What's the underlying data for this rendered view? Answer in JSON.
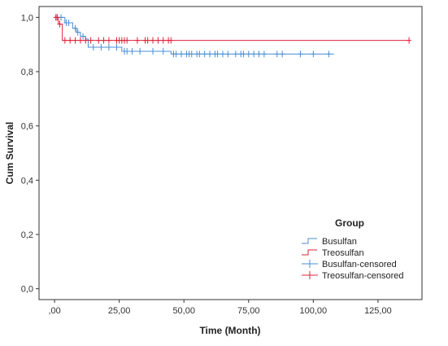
{
  "chart_data": {
    "type": "line",
    "subtype": "kaplan-meier",
    "title": "",
    "xlabel": "Time (Month)",
    "ylabel": "Cum Survival",
    "xlim": [
      -6,
      142
    ],
    "ylim": [
      -0.04,
      1.04
    ],
    "xticks": [
      0,
      25,
      50,
      75,
      100,
      125
    ],
    "xtick_labels": [
      ",00",
      "25,00",
      "50,00",
      "75,00",
      "100,00",
      "125,00"
    ],
    "yticks": [
      0,
      0.2,
      0.4,
      0.6,
      0.8,
      1.0
    ],
    "ytick_labels": [
      "0,0",
      "0,2",
      "0,4",
      "0,6",
      "0,8",
      "1,0"
    ],
    "grid": false,
    "legend": {
      "title": "Group",
      "position": "bottom-right",
      "entries": [
        "Busulfan",
        "Treosulfan",
        "Busulfan-censored",
        "Treosulfan-censored"
      ]
    },
    "colors": {
      "busulfan": "#4a8fd4",
      "treosulfan": "#e0223a"
    },
    "series": [
      {
        "name": "Busulfan",
        "color": "#4a8fd4",
        "steps": [
          [
            0,
            1.0
          ],
          [
            4,
            0.98
          ],
          [
            7,
            0.96
          ],
          [
            8.5,
            0.945
          ],
          [
            10,
            0.93
          ],
          [
            12,
            0.92
          ],
          [
            13,
            0.89
          ],
          [
            26,
            0.875
          ],
          [
            45,
            0.865
          ],
          [
            108,
            0.865
          ]
        ],
        "censored": [
          [
            1,
            1.0
          ],
          [
            2.5,
            1.0
          ],
          [
            4.5,
            0.98
          ],
          [
            5.5,
            0.98
          ],
          [
            8,
            0.96
          ],
          [
            9,
            0.945
          ],
          [
            11,
            0.93
          ],
          [
            15,
            0.89
          ],
          [
            18,
            0.89
          ],
          [
            21,
            0.89
          ],
          [
            24,
            0.89
          ],
          [
            27,
            0.875
          ],
          [
            28,
            0.875
          ],
          [
            30,
            0.875
          ],
          [
            33,
            0.875
          ],
          [
            38,
            0.875
          ],
          [
            42,
            0.875
          ],
          [
            46,
            0.865
          ],
          [
            47,
            0.865
          ],
          [
            49,
            0.865
          ],
          [
            51,
            0.865
          ],
          [
            52,
            0.865
          ],
          [
            53,
            0.865
          ],
          [
            55,
            0.865
          ],
          [
            56,
            0.865
          ],
          [
            58,
            0.865
          ],
          [
            60,
            0.865
          ],
          [
            62,
            0.865
          ],
          [
            63,
            0.865
          ],
          [
            65,
            0.865
          ],
          [
            67,
            0.865
          ],
          [
            70,
            0.865
          ],
          [
            72,
            0.865
          ],
          [
            73,
            0.865
          ],
          [
            75,
            0.865
          ],
          [
            77,
            0.865
          ],
          [
            79,
            0.865
          ],
          [
            81,
            0.865
          ],
          [
            86,
            0.865
          ],
          [
            88,
            0.865
          ],
          [
            95,
            0.865
          ],
          [
            100,
            0.865
          ],
          [
            106,
            0.865
          ]
        ]
      },
      {
        "name": "Treosulfan",
        "color": "#e0223a",
        "steps": [
          [
            0,
            1.0
          ],
          [
            1.5,
            0.975
          ],
          [
            3,
            0.915
          ],
          [
            137,
            0.915
          ]
        ],
        "censored": [
          [
            0.5,
            1.0
          ],
          [
            1,
            1.0
          ],
          [
            2,
            0.975
          ],
          [
            4,
            0.915
          ],
          [
            6,
            0.915
          ],
          [
            8,
            0.915
          ],
          [
            10,
            0.915
          ],
          [
            12,
            0.915
          ],
          [
            14,
            0.915
          ],
          [
            17,
            0.915
          ],
          [
            19,
            0.915
          ],
          [
            21,
            0.915
          ],
          [
            24,
            0.915
          ],
          [
            25,
            0.915
          ],
          [
            26,
            0.915
          ],
          [
            27,
            0.915
          ],
          [
            28,
            0.915
          ],
          [
            32,
            0.915
          ],
          [
            35,
            0.915
          ],
          [
            36,
            0.915
          ],
          [
            38,
            0.915
          ],
          [
            40,
            0.915
          ],
          [
            42,
            0.915
          ],
          [
            44,
            0.915
          ],
          [
            45,
            0.915
          ],
          [
            137,
            0.915
          ]
        ]
      }
    ]
  }
}
